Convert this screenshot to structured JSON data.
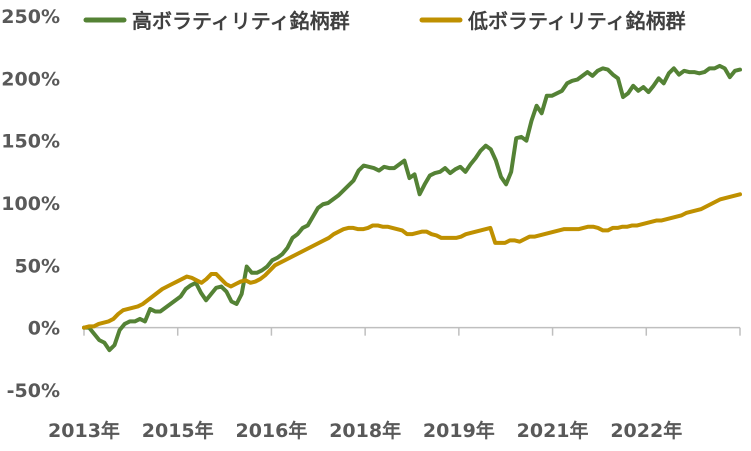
{
  "chart_data": {
    "type": "line",
    "legend": {
      "placement": "top"
    },
    "grid": false,
    "ylim": [
      -50,
      250
    ],
    "yticks": [
      -50,
      0,
      50,
      100,
      150,
      200,
      250
    ],
    "ytick_labels": [
      "-50%",
      "0%",
      "50%",
      "100%",
      "150%",
      "200%",
      "250%"
    ],
    "xtick_labels": [
      "2013年",
      "2015年",
      "2016年",
      "2018年",
      "2019年",
      "2021年",
      "2022年"
    ],
    "series": [
      {
        "name": "高ボラティリティ銘柄群",
        "color": "#548235",
        "values": [
          0,
          0,
          -5,
          -10,
          -12,
          -18,
          -14,
          -2,
          3,
          5,
          5,
          7,
          5,
          15,
          13,
          13,
          16,
          19,
          22,
          25,
          31,
          34,
          36,
          28,
          22,
          27,
          32,
          33,
          29,
          21,
          19,
          27,
          49,
          44,
          44,
          46,
          49,
          54,
          56,
          59,
          64,
          72,
          75,
          80,
          82,
          89,
          96,
          99,
          100,
          103,
          106,
          110,
          114,
          118,
          126,
          130,
          129,
          128,
          126,
          129,
          128,
          128,
          131,
          134,
          120,
          123,
          107,
          115,
          122,
          124,
          125,
          128,
          124,
          127,
          129,
          125,
          131,
          136,
          142,
          146,
          143,
          134,
          121,
          115,
          125,
          152,
          153,
          150,
          166,
          178,
          172,
          186,
          186,
          188,
          190,
          196,
          198,
          199,
          202,
          205,
          202,
          206,
          208,
          207,
          203,
          200,
          185,
          188,
          194,
          190,
          193,
          189,
          194,
          200,
          196,
          204,
          208,
          203,
          206,
          205,
          205,
          204,
          205,
          208,
          208,
          210,
          208,
          201,
          206,
          207
        ]
      },
      {
        "name": "低ボラティリティ銘柄群",
        "color": "#BF9000",
        "values": [
          0,
          1,
          1,
          3,
          4,
          5,
          7,
          11,
          14,
          15,
          16,
          17,
          19,
          22,
          25,
          28,
          31,
          33,
          35,
          37,
          39,
          41,
          40,
          38,
          36,
          39,
          43,
          43,
          39,
          35,
          33,
          35,
          37,
          38,
          36,
          37,
          39,
          42,
          46,
          50,
          52,
          54,
          56,
          58,
          60,
          62,
          64,
          66,
          68,
          70,
          72,
          75,
          77,
          79,
          80,
          80,
          79,
          79,
          80,
          82,
          82,
          81,
          81,
          80,
          79,
          78,
          75,
          75,
          76,
          77,
          77,
          75,
          74,
          72,
          72,
          72,
          72,
          73,
          75,
          76,
          77,
          78,
          79,
          80,
          68,
          68,
          68,
          70,
          70,
          69,
          71,
          73,
          73,
          74,
          75,
          76,
          77,
          78,
          79,
          79,
          79,
          79,
          80,
          81,
          81,
          80,
          78,
          78,
          80,
          80,
          81,
          81,
          82,
          82,
          83,
          84,
          85,
          86,
          86,
          87,
          88,
          89,
          90,
          92,
          93,
          94,
          95,
          97,
          99,
          101,
          103,
          104,
          105,
          106,
          107
        ]
      }
    ]
  }
}
